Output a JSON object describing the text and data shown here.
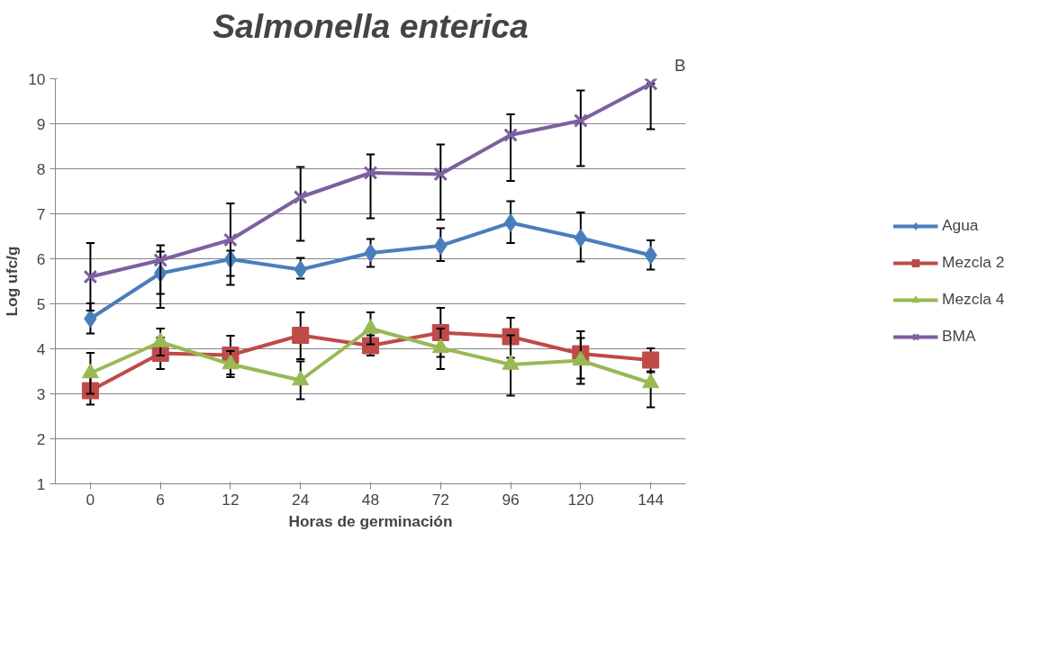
{
  "chart_data": {
    "type": "line",
    "title": "Salmonella enterica",
    "annotations": [
      "B"
    ],
    "xlabel": "Horas de germinación",
    "ylabel": "Log ufc/g",
    "categories": [
      "0",
      "6",
      "12",
      "24",
      "48",
      "72",
      "96",
      "120",
      "144"
    ],
    "ylim": [
      1,
      10
    ],
    "yticks": [
      1,
      2,
      3,
      4,
      5,
      6,
      7,
      8,
      9,
      10
    ],
    "grid": "y",
    "legend": "right",
    "series": [
      {
        "name": "Agua",
        "color": "#4a7ebb",
        "marker": "diamond",
        "values": [
          4.67,
          5.68,
          5.99,
          5.76,
          6.13,
          6.29,
          6.8,
          6.46,
          6.08
        ],
        "errors": [
          [
            4.34,
            5.01
          ],
          [
            5.22,
            6.16
          ],
          [
            5.42,
            6.18
          ],
          [
            5.56,
            6.02
          ],
          [
            5.82,
            6.44
          ],
          [
            5.95,
            6.68
          ],
          [
            6.35,
            7.28
          ],
          [
            5.94,
            7.03
          ],
          [
            5.76,
            6.41
          ]
        ]
      },
      {
        "name": "Mezcla 2",
        "color": "#be4b48",
        "marker": "square",
        "values": [
          3.07,
          3.9,
          3.86,
          4.3,
          4.07,
          4.36,
          4.27,
          3.89,
          3.75
        ],
        "errors": [
          [
            2.76,
            3.38
          ],
          [
            3.55,
            4.25
          ],
          [
            3.43,
            4.29
          ],
          [
            3.77,
            4.81
          ],
          [
            3.85,
            4.3
          ],
          [
            3.82,
            4.91
          ],
          [
            3.8,
            4.69
          ],
          [
            3.34,
            4.39
          ],
          [
            3.48,
            4.01
          ]
        ]
      },
      {
        "name": "Mezcla 4",
        "color": "#98b954",
        "marker": "triangle",
        "values": [
          3.46,
          4.15,
          3.66,
          3.3,
          4.45,
          4.02,
          3.65,
          3.74,
          3.24
        ],
        "errors": [
          [
            3.0,
            3.91
          ],
          [
            3.85,
            4.45
          ],
          [
            3.37,
            3.95
          ],
          [
            2.88,
            3.72
          ],
          [
            4.1,
            4.81
          ],
          [
            3.55,
            4.45
          ],
          [
            2.96,
            4.3
          ],
          [
            3.22,
            4.24
          ],
          [
            2.7,
            3.5
          ]
        ]
      },
      {
        "name": "BMA",
        "color": "#7d60a0",
        "marker": "cross",
        "values": [
          5.6,
          5.97,
          6.42,
          7.37,
          7.91,
          7.88,
          8.75,
          9.07,
          9.89
        ],
        "errors": [
          [
            4.85,
            6.35
          ],
          [
            4.91,
            6.3
          ],
          [
            5.62,
            7.23
          ],
          [
            6.4,
            8.04
          ],
          [
            6.9,
            8.32
          ],
          [
            6.87,
            8.54
          ],
          [
            7.73,
            9.21
          ],
          [
            8.06,
            9.74
          ],
          [
            8.88,
            9.89
          ]
        ]
      }
    ]
  }
}
